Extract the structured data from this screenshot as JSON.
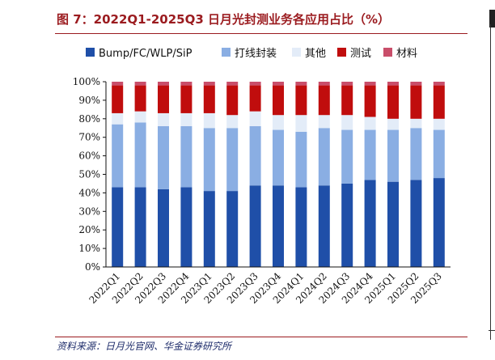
{
  "figure": {
    "title": "图 7：2022Q1-2025Q3 日月光封测业务各应用占比（%）",
    "source": "资料来源：日月光官网、华金证券研究所"
  },
  "chart_data": {
    "type": "bar",
    "stacked": true,
    "categories": [
      "2022Q1",
      "2022Q2",
      "2022Q3",
      "2022Q4",
      "2023Q1",
      "2023Q2",
      "2023Q3",
      "2023Q4",
      "2024Q1",
      "2024Q2",
      "2024Q3",
      "2024Q4",
      "2025Q1",
      "2025Q2",
      "2025Q3"
    ],
    "series": [
      {
        "name": "Bump/FC/WLP/SiP",
        "color": "#1f4fa8",
        "values": [
          43,
          43,
          42,
          43,
          41,
          41,
          44,
          44,
          43,
          44,
          45,
          47,
          46,
          47,
          48
        ]
      },
      {
        "name": "打线封装",
        "color": "#8aaee3",
        "values": [
          34,
          35,
          34,
          33,
          34,
          34,
          32,
          30,
          30,
          31,
          29,
          27,
          28,
          28,
          26
        ]
      },
      {
        "name": "其他",
        "color": "#e3ecf8",
        "values": [
          6,
          6,
          7,
          7,
          8,
          7,
          8,
          8,
          9,
          7,
          8,
          7,
          6,
          5,
          6
        ]
      },
      {
        "name": "测试",
        "color": "#c00d0d",
        "values": [
          15,
          14,
          15,
          15,
          15,
          16,
          14,
          16,
          16,
          16,
          16,
          17,
          18,
          18,
          18
        ]
      },
      {
        "name": "材料",
        "color": "#c94e6a",
        "values": [
          2,
          2,
          2,
          2,
          2,
          2,
          2,
          2,
          2,
          2,
          2,
          2,
          2,
          2,
          2
        ]
      }
    ],
    "ylim": [
      0,
      100
    ],
    "yticks": [
      "0%",
      "10%",
      "20%",
      "30%",
      "40%",
      "50%",
      "60%",
      "70%",
      "80%",
      "90%",
      "100%"
    ],
    "legend_position": "top",
    "grid": false
  }
}
